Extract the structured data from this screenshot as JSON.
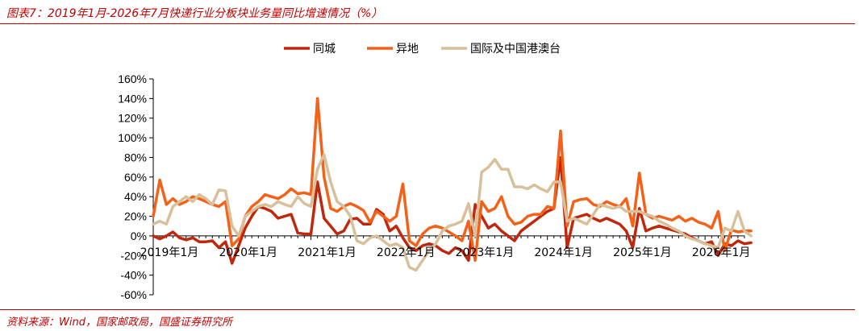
{
  "header": {
    "title": "图表7：2019年1月-2026年7月快递行业分板块业务量同比增速情况（%）"
  },
  "footer": {
    "source": "资料来源：Wind，国家邮政局，国盛证券研究所"
  },
  "colors": {
    "accent": "#c00000",
    "intra_city": "#c0280e",
    "inter_city": "#f4621a",
    "international": "#d8c09a"
  },
  "chart_data": {
    "type": "line",
    "title": "",
    "xlabel": "",
    "ylabel": "",
    "ylim": [
      -60,
      160
    ],
    "yticks": [
      "160%",
      "140%",
      "120%",
      "100%",
      "80%",
      "60%",
      "40%",
      "20%",
      "0%",
      "-20%",
      "-40%",
      "-60%"
    ],
    "xticks": [
      "2019年1月",
      "2020年1月",
      "2021年1月",
      "2022年1月",
      "2023年1月",
      "2024年1月",
      "2025年1月",
      "2026年1月"
    ],
    "grid": false,
    "legend": "top",
    "x_start": "2019-01",
    "x_end": "2026-07",
    "series": [
      {
        "name": "同城",
        "color": "#c0280e",
        "values": [
          0,
          -3,
          0,
          4,
          -2,
          -4,
          -2,
          -6,
          -6,
          -5,
          -12,
          -6,
          -28,
          -10,
          8,
          20,
          30,
          28,
          25,
          18,
          20,
          22,
          3,
          2,
          2,
          55,
          18,
          10,
          2,
          5,
          17,
          18,
          12,
          12,
          27,
          22,
          5,
          10,
          -2,
          -12,
          -15,
          -10,
          -8,
          -10,
          -15,
          -18,
          -12,
          -15,
          -25,
          32,
          20,
          8,
          12,
          5,
          0,
          -5,
          5,
          10,
          15,
          20,
          25,
          28,
          80,
          -12,
          18,
          20,
          22,
          18,
          15,
          18,
          15,
          12,
          5,
          -12,
          28,
          5,
          8,
          10,
          8,
          6,
          4,
          2,
          -2,
          -5,
          -8,
          -6,
          -20,
          -8,
          -10,
          -5,
          -8,
          -7
        ]
      },
      {
        "name": "异地",
        "color": "#f4621a",
        "values": [
          20,
          57,
          32,
          38,
          32,
          35,
          40,
          38,
          35,
          32,
          30,
          35,
          -10,
          -3,
          20,
          30,
          35,
          42,
          40,
          38,
          42,
          48,
          43,
          44,
          42,
          140,
          60,
          28,
          25,
          30,
          33,
          30,
          26,
          14,
          25,
          20,
          15,
          20,
          53,
          -5,
          -10,
          2,
          8,
          10,
          8,
          4,
          0,
          -5,
          15,
          -25,
          35,
          25,
          28,
          40,
          20,
          12,
          14,
          20,
          22,
          22,
          30,
          28,
          107,
          10,
          35,
          37,
          38,
          32,
          30,
          35,
          32,
          30,
          38,
          10,
          64,
          22,
          18,
          20,
          18,
          16,
          20,
          15,
          18,
          14,
          12,
          8,
          25,
          -15,
          6,
          4,
          5,
          5
        ]
      },
      {
        "name": "国际及中国港澳台",
        "color": "#d8c09a",
        "values": [
          12,
          15,
          12,
          30,
          35,
          40,
          35,
          42,
          38,
          32,
          47,
          46,
          10,
          0,
          20,
          25,
          30,
          32,
          30,
          35,
          32,
          30,
          40,
          33,
          30,
          68,
          83,
          55,
          35,
          30,
          20,
          -5,
          -8,
          -2,
          0,
          -5,
          -10,
          -8,
          -12,
          -32,
          -35,
          -25,
          -15,
          -8,
          5,
          10,
          12,
          15,
          33,
          0,
          65,
          70,
          78,
          68,
          68,
          50,
          50,
          48,
          52,
          48,
          45,
          55,
          55,
          15,
          18,
          15,
          12,
          22,
          32,
          30,
          28,
          30,
          25,
          25,
          25,
          22,
          20,
          15,
          12,
          8,
          5,
          0,
          -3,
          -5,
          -8,
          -10,
          -12,
          8,
          5,
          25,
          5,
          0
        ]
      }
    ]
  }
}
